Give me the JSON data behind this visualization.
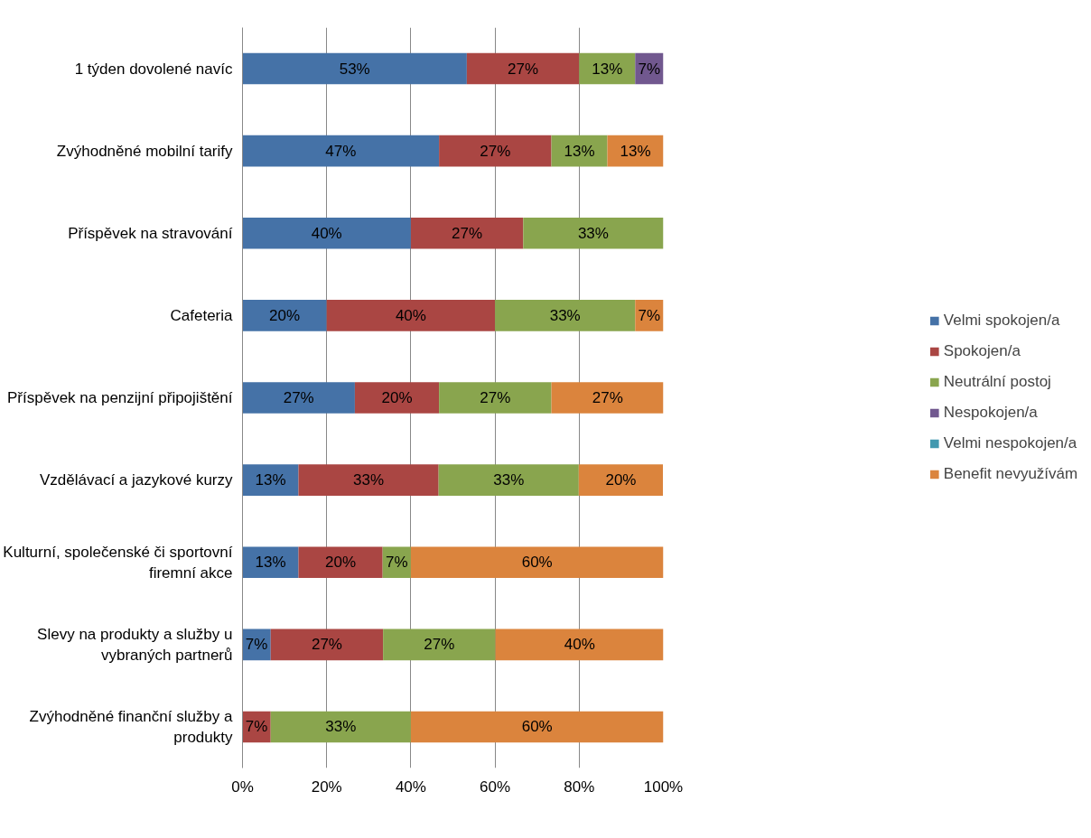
{
  "chart_data": {
    "type": "bar",
    "orientation": "horizontal",
    "stacked": true,
    "categories": [
      "1 týden dovolené navíc",
      "Zvýhodněné mobilní tarify",
      "Příspěvek na stravování",
      "Cafeteria",
      "Příspěvek na penzijní připojištění",
      "Vzdělávací a jazykové kurzy",
      "Kulturní, společenské či sportovní firemní akce",
      "Slevy na produkty a služby u vybraných partnerů",
      "Zvýhodněné finanční služby a produkty"
    ],
    "series": [
      {
        "name": "Velmi spokojen/a",
        "color": "#4572a7",
        "values": [
          53.3,
          46.7,
          40,
          20,
          26.7,
          13.3,
          13.3,
          6.7,
          0
        ],
        "value_labels": [
          "53%",
          "47%",
          "40%",
          "20%",
          "27%",
          "13%",
          "13%",
          "7%",
          null
        ]
      },
      {
        "name": "Spokojen/a",
        "color": "#aa4643",
        "values": [
          26.7,
          26.7,
          26.7,
          40,
          20,
          33.3,
          20,
          26.7,
          6.7
        ],
        "value_labels": [
          "27%",
          "27%",
          "27%",
          "40%",
          "20%",
          "33%",
          "20%",
          "27%",
          "7%"
        ]
      },
      {
        "name": "Neutrální postoj",
        "color": "#89a54e",
        "values": [
          13.3,
          13.3,
          33.3,
          33.3,
          26.7,
          33.3,
          6.7,
          26.7,
          33.3
        ],
        "value_labels": [
          "13%",
          "13%",
          "33%",
          "33%",
          "27%",
          "33%",
          "7%",
          "27%",
          "33%"
        ]
      },
      {
        "name": "Nespokojen/a",
        "color": "#71588f",
        "values": [
          6.7,
          0,
          0,
          0,
          0,
          0,
          0,
          0,
          0
        ],
        "value_labels": [
          "7%",
          null,
          null,
          null,
          null,
          null,
          null,
          null,
          null
        ]
      },
      {
        "name": "Velmi nespokojen/a",
        "color": "#4198af",
        "values": [
          0,
          0,
          0,
          0,
          0,
          0,
          0,
          0,
          0
        ],
        "value_labels": [
          null,
          null,
          null,
          null,
          null,
          null,
          null,
          null,
          null
        ]
      },
      {
        "name": "Benefit nevyužívám",
        "color": "#db843d",
        "values": [
          0,
          13.3,
          0,
          6.7,
          26.7,
          20,
          60,
          40,
          60
        ],
        "value_labels": [
          null,
          "13%",
          null,
          "7%",
          "27%",
          "20%",
          "60%",
          "40%",
          "60%"
        ]
      }
    ],
    "xlim": [
      0,
      100
    ],
    "xticks": [
      {
        "value": 0,
        "label": "0%"
      },
      {
        "value": 20,
        "label": "20%"
      },
      {
        "value": 40,
        "label": "40%"
      },
      {
        "value": 60,
        "label": "60%"
      },
      {
        "value": 80,
        "label": "80%"
      },
      {
        "value": 100,
        "label": "100%"
      }
    ],
    "grid": "x",
    "legend": "right"
  }
}
